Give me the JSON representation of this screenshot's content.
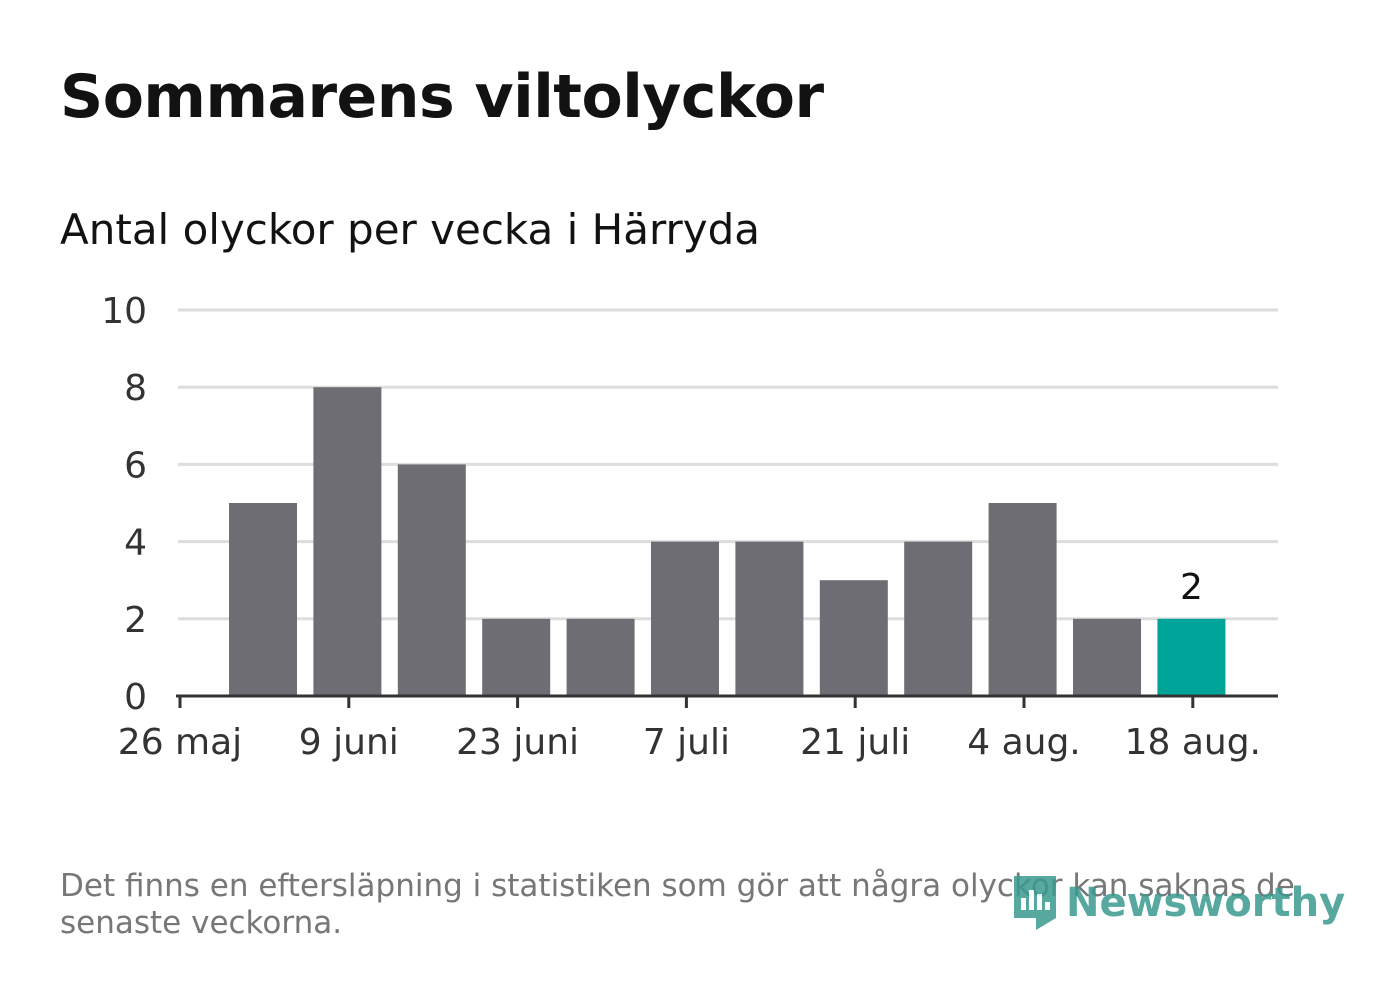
{
  "title": "Sommarens viltolyckor",
  "subtitle": "Antal olyckor per vecka i Härryda",
  "footnote": "Det finns en eftersläpning i statistiken som gör att några olyckor kan saknas de senaste veckorna.",
  "logo": {
    "text": "Newsworthy",
    "color": "#3a9a8f",
    "icon": "newsworthy-logo-icon"
  },
  "colors": {
    "bar": "#6e6d73",
    "highlight": "#00a499",
    "grid": "#dddddd",
    "axis": "#333333",
    "text": "#333333"
  },
  "chart_data": {
    "type": "bar",
    "title": "Antal olyckor per vecka i Härryda",
    "xlabel": "",
    "ylabel": "",
    "ylim": [
      0,
      10
    ],
    "yticks": [
      "0",
      "2",
      "4",
      "6",
      "8",
      "10"
    ],
    "xtick_labels": [
      "26 maj",
      "9 juni",
      "23 juni",
      "7 juli",
      "21 juli",
      "4 aug.",
      "18 aug."
    ],
    "values": [
      5,
      8,
      6,
      2,
      2,
      4,
      4,
      3,
      4,
      5,
      2,
      2
    ],
    "highlight_index": 11,
    "data_labels": [
      {
        "index": 11,
        "text": "2"
      }
    ],
    "grid": true
  }
}
